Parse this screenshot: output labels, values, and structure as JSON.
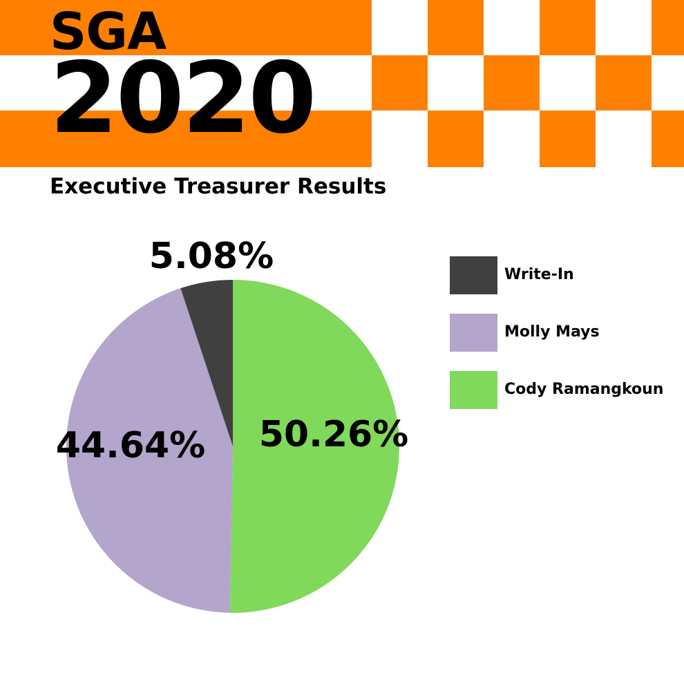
{
  "header": {
    "line1": "SGA",
    "line2": "2020"
  },
  "colors": {
    "banner_orange": "#ff8000",
    "banner_white": "#ffffff",
    "background": "#ffffff",
    "text": "#000000"
  },
  "chart_data": {
    "type": "pie",
    "title": "Executive Treasurer Results",
    "legend_position": "right",
    "slices": [
      {
        "label": "Write-In",
        "value": 5.08,
        "display": "5.08%",
        "color": "#404040"
      },
      {
        "label": "Molly Mays",
        "value": 44.64,
        "display": "44.64%",
        "color": "#b3a5cb"
      },
      {
        "label": "Cody Ramangkoun",
        "value": 50.26,
        "display": "50.26%",
        "color": "#80d95a"
      }
    ]
  }
}
